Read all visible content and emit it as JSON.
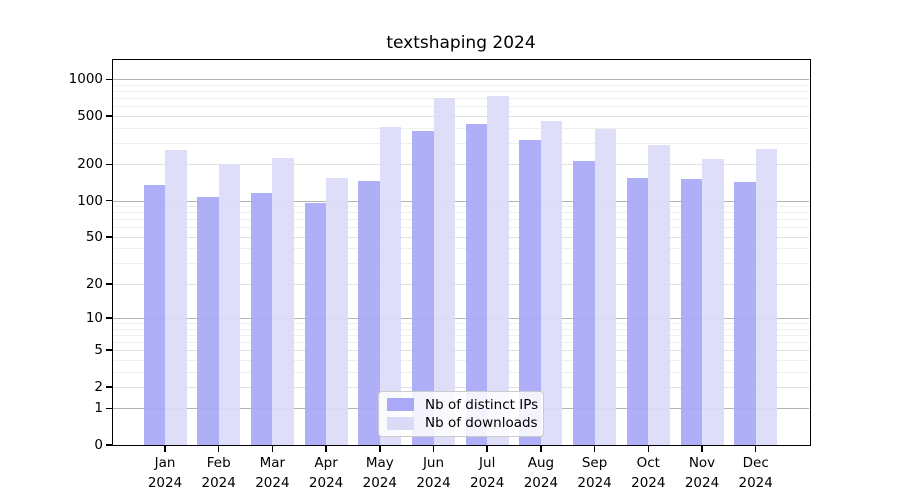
{
  "title": "textshaping 2024",
  "chart_data": {
    "type": "bar",
    "title": "textshaping 2024",
    "categories": [
      "Jan 2024",
      "Feb 2024",
      "Mar 2024",
      "Apr 2024",
      "May 2024",
      "Jun 2024",
      "Jul 2024",
      "Aug 2024",
      "Sep 2024",
      "Oct 2024",
      "Nov 2024",
      "Dec 2024"
    ],
    "series": [
      {
        "name": "Nb of distinct IPs",
        "color": "#a9a9f8",
        "values": [
          135,
          108,
          116,
          95,
          147,
          375,
          428,
          317,
          212,
          155,
          150,
          142
        ]
      },
      {
        "name": "Nb of downloads",
        "color": "#dbdbf8",
        "values": [
          260,
          200,
          226,
          153,
          404,
          705,
          728,
          456,
          390,
          288,
          223,
          267
        ]
      }
    ],
    "yscale": "log1p",
    "ylim": [
      0,
      1455
    ],
    "y_tick_values": [
      1000,
      500,
      200,
      100,
      50,
      20,
      10,
      5,
      2,
      1,
      0
    ],
    "major_grid_values": [
      1,
      10,
      100,
      1000
    ],
    "labeled_grid_values": [
      2,
      5,
      20,
      50,
      200,
      500
    ],
    "minor_grid_values": [
      3,
      4,
      6,
      7,
      8,
      9,
      30,
      40,
      60,
      70,
      80,
      90,
      300,
      400,
      600,
      700,
      800,
      900
    ],
    "grid": "horizontal",
    "legend_position": "lower center",
    "xlabel": "",
    "ylabel": ""
  },
  "colors": {
    "bar_distinct_ips": "#a9a9f8",
    "bar_downloads": "#dbdbf8"
  }
}
